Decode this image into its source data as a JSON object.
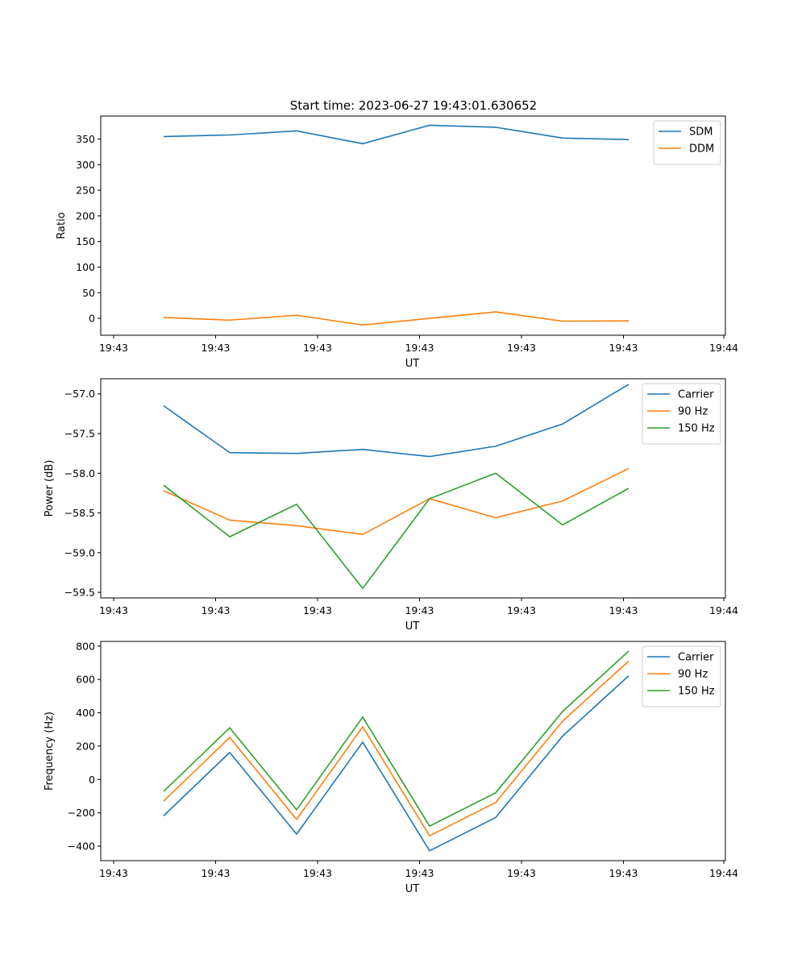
{
  "title": "Start time: 2023-06-27 19:43:01.630652",
  "colors": {
    "blue": "#1f77b4",
    "orange": "#ff7f0e",
    "green": "#2ca02c"
  },
  "chart_data": [
    {
      "type": "line",
      "title": "Start time: 2023-06-27 19:43:01.630652",
      "xlabel": "UT",
      "ylabel": "Ratio",
      "x_tick_labels": [
        "19:43",
        "19:43",
        "19:43",
        "19:43",
        "19:43",
        "19:43",
        "19:43",
        "19:44"
      ],
      "ylim": [
        -33,
        395
      ],
      "y_ticks": [
        0,
        50,
        100,
        150,
        200,
        250,
        300,
        350
      ],
      "legend_position": "top-right",
      "grid": false,
      "series": [
        {
          "name": "SDM",
          "color": "#1f77b4",
          "values": [
            355,
            358,
            366,
            341,
            377,
            373,
            352,
            349
          ]
        },
        {
          "name": "DDM",
          "color": "#ff7f0e",
          "values": [
            1.5,
            -3.5,
            6,
            -13,
            0,
            12.5,
            -5.5,
            -5
          ]
        }
      ]
    },
    {
      "type": "line",
      "title": "",
      "xlabel": "UT",
      "ylabel": "Power (dB)",
      "x_tick_labels": [
        "19:43",
        "19:43",
        "19:43",
        "19:43",
        "19:43",
        "19:43",
        "19:43",
        "19:44"
      ],
      "ylim": [
        -59.57,
        -56.81
      ],
      "y_ticks": [
        -57.0,
        -57.5,
        -58.0,
        -58.5,
        -59.0,
        -59.5
      ],
      "y_tick_labels": [
        "−57.0",
        "−57.5",
        "−58.0",
        "−58.5",
        "−59.0",
        "−59.5"
      ],
      "legend_position": "top-right",
      "grid": false,
      "series": [
        {
          "name": "Carrier",
          "color": "#1f77b4",
          "values": [
            -57.15,
            -57.74,
            -57.75,
            -57.7,
            -57.79,
            -57.66,
            -57.38,
            -56.88
          ]
        },
        {
          "name": "90 Hz",
          "color": "#ff7f0e",
          "values": [
            -58.22,
            -58.59,
            -58.66,
            -58.77,
            -58.32,
            -58.56,
            -58.35,
            -57.94
          ]
        },
        {
          "name": "150 Hz",
          "color": "#2ca02c",
          "values": [
            -58.15,
            -58.8,
            -58.39,
            -59.45,
            -58.32,
            -58.0,
            -58.65,
            -58.19
          ]
        }
      ]
    },
    {
      "type": "line",
      "title": "",
      "xlabel": "UT",
      "ylabel": "Frequency (Hz)",
      "x_tick_labels": [
        "19:43",
        "19:43",
        "19:43",
        "19:43",
        "19:43",
        "19:43",
        "19:43",
        "19:44"
      ],
      "ylim": [
        -487,
        828
      ],
      "y_ticks": [
        -400,
        -200,
        0,
        200,
        400,
        600,
        800
      ],
      "y_tick_labels": [
        "−400",
        "−200",
        "0",
        "200",
        "400",
        "600",
        "800"
      ],
      "legend_position": "top-right",
      "grid": false,
      "series": [
        {
          "name": "Carrier",
          "color": "#1f77b4",
          "values": [
            -218,
            162,
            -328,
            224,
            -428,
            -228,
            260,
            622
          ]
        },
        {
          "name": "90 Hz",
          "color": "#ff7f0e",
          "values": [
            -130,
            252,
            -240,
            316,
            -338,
            -138,
            350,
            710
          ]
        },
        {
          "name": "150 Hz",
          "color": "#2ca02c",
          "values": [
            -72,
            310,
            -182,
            374,
            -280,
            -80,
            408,
            770
          ]
        }
      ]
    }
  ]
}
